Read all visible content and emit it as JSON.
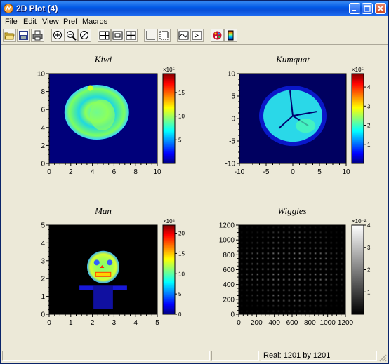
{
  "window": {
    "title": "2D Plot (4)",
    "icon": "app-icon",
    "controls": [
      "minimize-icon",
      "maximize-icon",
      "close-icon"
    ]
  },
  "menu": [
    {
      "label": "File",
      "underline": "F"
    },
    {
      "label": "Edit",
      "underline": "E"
    },
    {
      "label": "View",
      "underline": "V"
    },
    {
      "label": "Pref",
      "underline": "P"
    },
    {
      "label": "Macros",
      "underline": "M"
    }
  ],
  "toolbar": [
    "open-folder-icon",
    "save-icon",
    "print-icon",
    "zoom-in-icon",
    "zoom-out-icon",
    "zoom-reset-icon",
    "grid-layout-icon",
    "single-frame-icon",
    "crosshair-frame-icon",
    "axes-icon",
    "box-icon",
    "line-plot-icon",
    "export-icon",
    "palette-icon",
    "colorbar-icon"
  ],
  "status": {
    "left": "",
    "middle": "",
    "right": "Real: 1201 by 1201"
  },
  "chart_data": [
    {
      "type": "heatmap",
      "title": "Kiwi",
      "xlim": [
        0,
        10
      ],
      "ylim": [
        0,
        10
      ],
      "xticks": [
        "0",
        "2",
        "4",
        "6",
        "8",
        "10"
      ],
      "yticks": [
        "0",
        "2",
        "4",
        "6",
        "8",
        "10"
      ],
      "colorbar": {
        "exponent": "×10⁵",
        "ticks": [
          "5",
          "10",
          "15"
        ],
        "range": [
          0,
          19
        ]
      },
      "colormap": "jet"
    },
    {
      "type": "heatmap",
      "title": "Kumquat",
      "xlim": [
        -10,
        10
      ],
      "ylim": [
        -10,
        10
      ],
      "xticks": [
        "-10",
        "-5",
        "0",
        "5",
        "10"
      ],
      "yticks": [
        "-10",
        "-5",
        "0",
        "5",
        "10"
      ],
      "colorbar": {
        "exponent": "×10⁵",
        "ticks": [
          "1",
          "2",
          "3",
          "4"
        ],
        "range": [
          0,
          4.7
        ]
      },
      "colormap": "jet"
    },
    {
      "type": "heatmap",
      "title": "Man",
      "xlim": [
        0,
        5
      ],
      "ylim": [
        0,
        5
      ],
      "xticks": [
        "0",
        "1",
        "2",
        "3",
        "4",
        "5"
      ],
      "yticks": [
        "0",
        "1",
        "2",
        "3",
        "4",
        "5"
      ],
      "colorbar": {
        "exponent": "×10⁵",
        "ticks": [
          "0",
          "5",
          "10",
          "15",
          "20"
        ],
        "range": [
          0,
          22
        ]
      },
      "colormap": "jet"
    },
    {
      "type": "heatmap",
      "title": "Wiggles",
      "xlim": [
        0,
        1200
      ],
      "ylim": [
        0,
        1200
      ],
      "xticks": [
        "0",
        "200",
        "400",
        "600",
        "800",
        "1000",
        "1200"
      ],
      "yticks": [
        "0",
        "200",
        "400",
        "600",
        "800",
        "1000",
        "1200"
      ],
      "colorbar": {
        "exponent": "×10⁻²",
        "ticks": [
          "1",
          "2",
          "3",
          "4"
        ],
        "range": [
          0,
          4
        ]
      },
      "colormap": "gray"
    }
  ]
}
